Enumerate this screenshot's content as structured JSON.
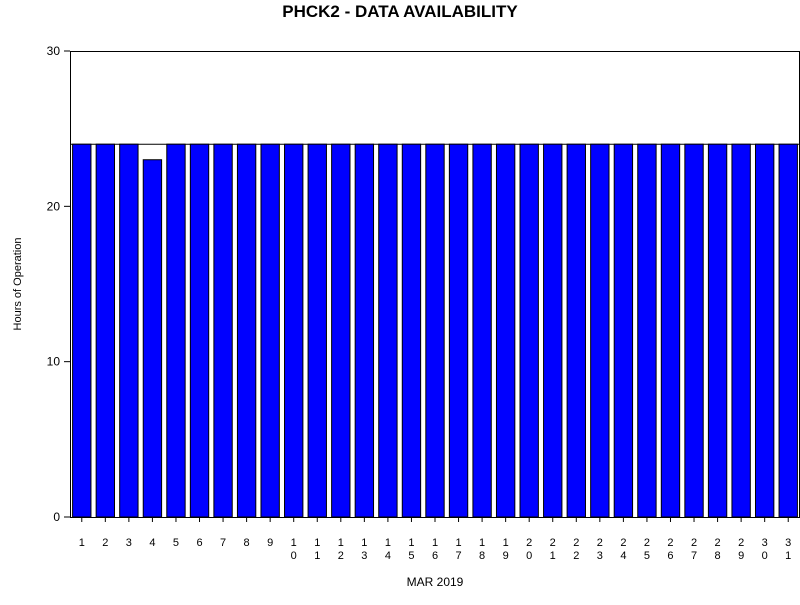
{
  "chart_data": {
    "type": "bar",
    "title": "PHCK2 - DATA AVAILABILITY",
    "xlabel": "MAR 2019",
    "ylabel": "Hours of Operation",
    "categories": [
      "1",
      "2",
      "3",
      "4",
      "5",
      "6",
      "7",
      "8",
      "9",
      "10",
      "11",
      "12",
      "13",
      "14",
      "15",
      "16",
      "17",
      "18",
      "19",
      "20",
      "21",
      "22",
      "23",
      "24",
      "25",
      "26",
      "27",
      "28",
      "29",
      "30",
      "31"
    ],
    "series": [
      {
        "values": [
          24,
          24,
          24,
          23,
          24,
          24,
          24,
          24,
          24,
          24,
          24,
          24,
          24,
          24,
          24,
          24,
          24,
          24,
          24,
          24,
          24,
          24,
          24,
          24,
          24,
          24,
          24,
          24,
          24,
          24,
          24
        ]
      }
    ],
    "reference_line": 24,
    "ylim": [
      0,
      30
    ],
    "yticks": [
      0,
      10,
      20,
      30
    ],
    "grid": false,
    "legend": "none",
    "bar_color": "#0000ff"
  }
}
